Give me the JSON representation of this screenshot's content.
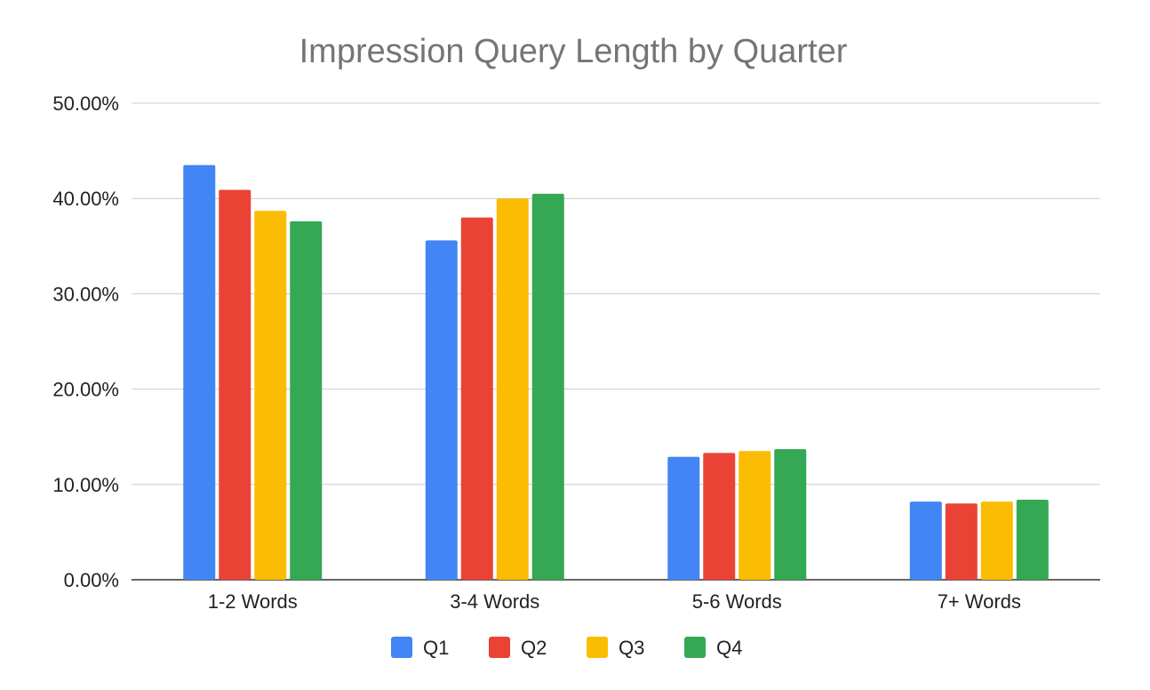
{
  "chart_data": {
    "type": "bar",
    "title": "Impression Query Length by Quarter",
    "xlabel": "",
    "ylabel": "",
    "categories": [
      "1-2 Words",
      "3-4 Words",
      "5-6 Words",
      "7+ Words"
    ],
    "series": [
      {
        "name": "Q1",
        "color": "#4285f4",
        "values": [
          43.5,
          35.6,
          12.9,
          8.2
        ]
      },
      {
        "name": "Q2",
        "color": "#ea4335",
        "values": [
          40.9,
          38.0,
          13.3,
          8.0
        ]
      },
      {
        "name": "Q3",
        "color": "#fbbc04",
        "values": [
          38.7,
          40.0,
          13.5,
          8.2
        ]
      },
      {
        "name": "Q4",
        "color": "#34a853",
        "values": [
          37.6,
          40.5,
          13.7,
          8.4
        ]
      }
    ],
    "ylim": [
      0,
      50
    ],
    "yticks": [
      "0.00%",
      "10.00%",
      "20.00%",
      "30.00%",
      "40.00%",
      "50.00%"
    ],
    "grid": true,
    "legend_position": "bottom"
  }
}
